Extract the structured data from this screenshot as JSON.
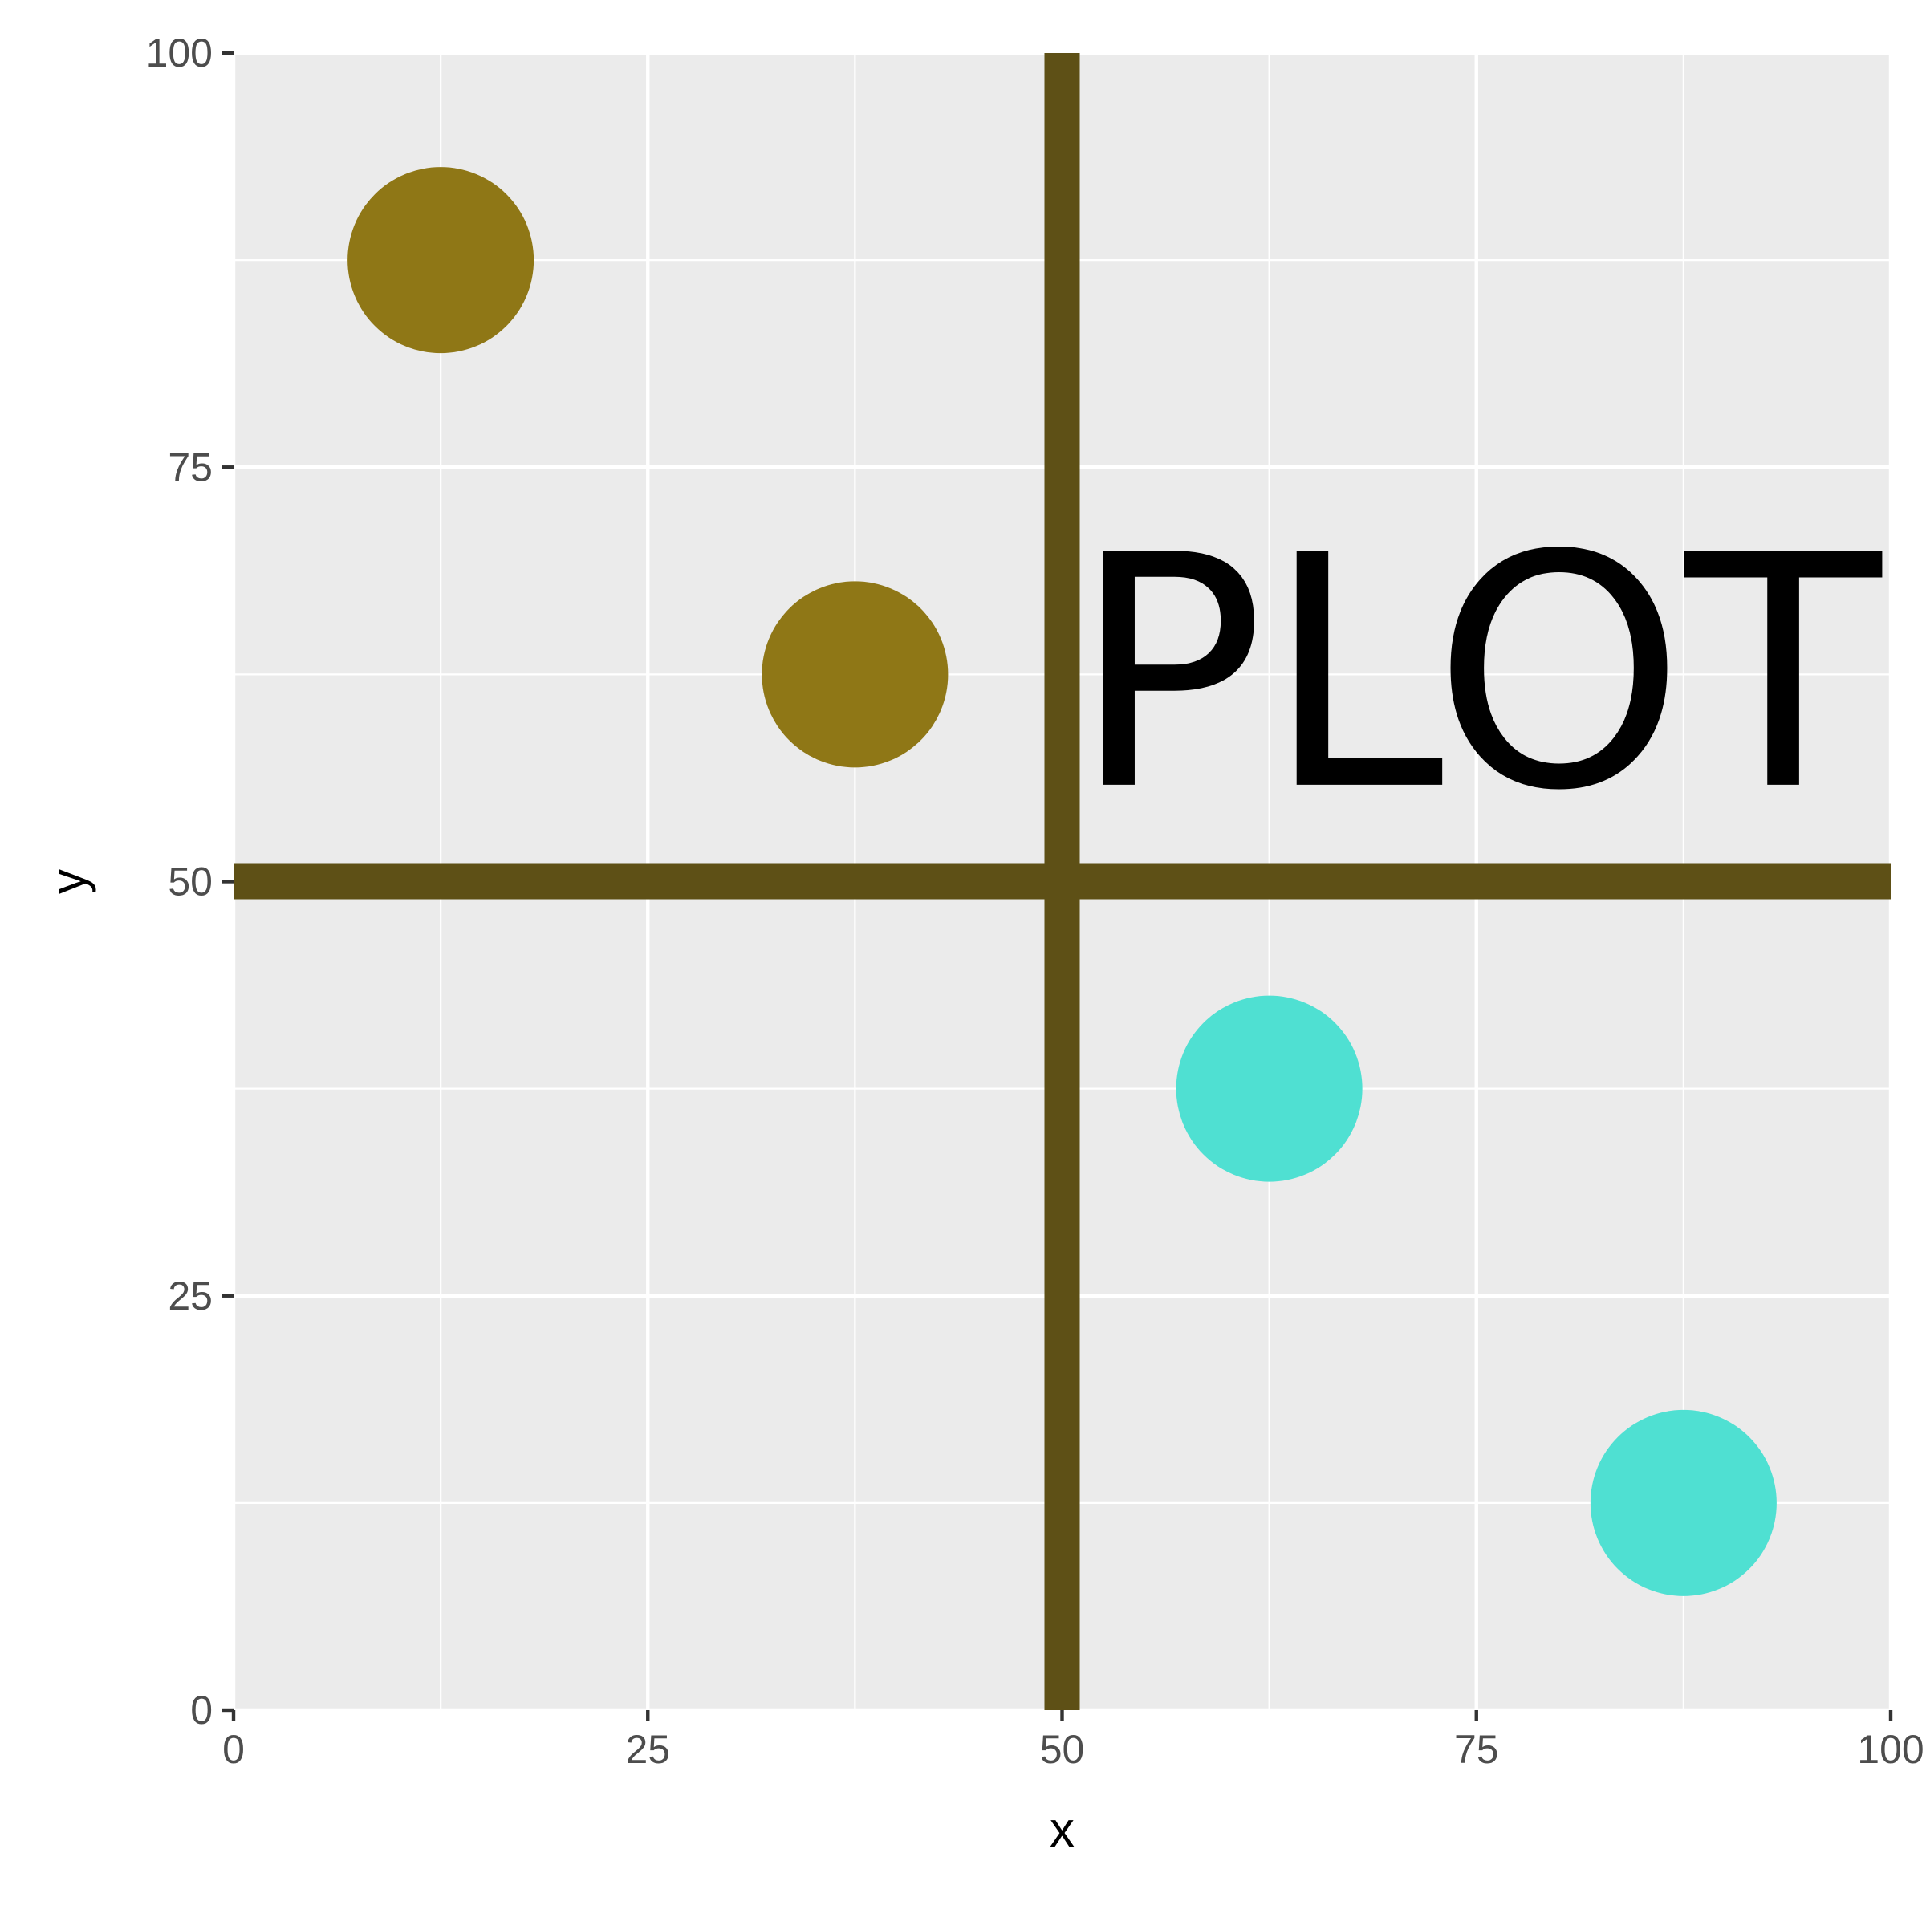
{
  "chart_data": {
    "type": "scatter",
    "xlabel": "x",
    "ylabel": "y",
    "xlim": [
      0,
      100
    ],
    "ylim": [
      0,
      100
    ],
    "x_ticks": [
      0,
      25,
      50,
      75,
      100
    ],
    "y_ticks": [
      0,
      25,
      50,
      75,
      100
    ],
    "x_tick_labels": [
      "0",
      "25",
      "50",
      "75",
      "100"
    ],
    "y_tick_labels": [
      "0",
      "25",
      "50",
      "75",
      "100"
    ],
    "grid": true,
    "background_color": "#ebebeb",
    "points": [
      {
        "x": 12.5,
        "y": 87.5,
        "color": "#8f7716"
      },
      {
        "x": 37.5,
        "y": 62.5,
        "color": "#8f7716"
      },
      {
        "x": 62.5,
        "y": 37.5,
        "color": "#4fe0d2"
      },
      {
        "x": 87.5,
        "y": 12.5,
        "color": "#4fe0d2"
      }
    ],
    "reference_lines": [
      {
        "orientation": "vertical",
        "value": 50,
        "color": "#5e5016"
      },
      {
        "orientation": "horizontal",
        "value": 50,
        "color": "#5e5016"
      }
    ],
    "annotations": [
      {
        "text": "PLOT",
        "x": 75,
        "y": 62.5,
        "color": "#000000"
      }
    ]
  }
}
